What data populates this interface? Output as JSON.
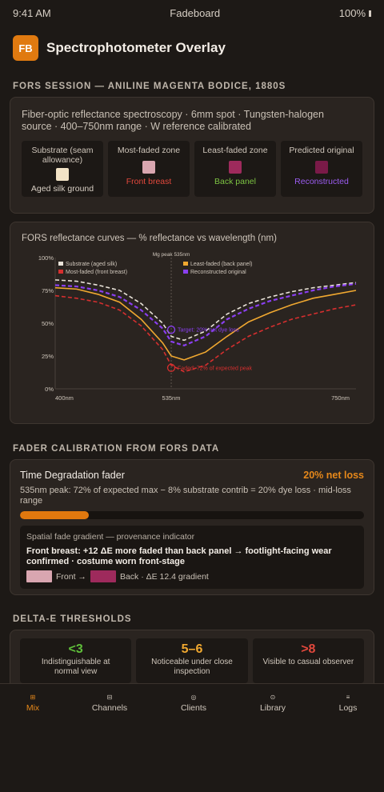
{
  "status": {
    "time": "9:41 AM",
    "app": "Fadeboard",
    "battery": "100%"
  },
  "header": {
    "logo": "FB",
    "title": "Spectrophotometer Overlay"
  },
  "fors": {
    "section_title": "FORS SESSION — ANILINE MAGENTA BODICE, 1880S",
    "desc_line1": "Fiber-optic reflectance spectroscopy · 6mm spot · Tungsten-halogen",
    "desc_line2": "source · 400–750nm range · W reference calibrated",
    "zones": [
      {
        "title1": "Substrate (seam",
        "title2": "allowance)",
        "label": "Aged silk ground",
        "swatch": "#f2e3c6",
        "label_color": "#d8cfc4"
      },
      {
        "title1": "Most-faded zone",
        "title2": "",
        "label": "Front breast",
        "swatch": "#d9a6b0",
        "label_color": "#e2483c"
      },
      {
        "title1": "Least-faded zone",
        "title2": "",
        "label": "Back panel",
        "swatch": "#9e2a5c",
        "label_color": "#7cc242"
      },
      {
        "title1": "Predicted original",
        "title2": "",
        "label": "Reconstructed",
        "swatch": "#7a1a48",
        "label_color": "#9b5cf0"
      }
    ]
  },
  "chart_data": {
    "type": "line",
    "title": "FORS reflectance curves — % reflectance vs wavelength (nm)",
    "x": [
      400,
      425,
      450,
      475,
      500,
      525,
      535,
      550,
      575,
      600,
      625,
      650,
      675,
      700,
      725,
      750
    ],
    "xticks": [
      "400nm",
      "535nm",
      "750nm"
    ],
    "yticks": [
      "100%",
      "75%",
      "50%",
      "25%",
      "0%"
    ],
    "ylim": [
      0,
      100
    ],
    "xlim": [
      400,
      750
    ],
    "peak_label": "Mg peak 535nm",
    "series": [
      {
        "name": "Substrate (aged silk)",
        "color": "#e8e2d8",
        "dashed": true,
        "values": [
          83,
          82,
          79,
          75,
          65,
          50,
          40,
          37,
          44,
          57,
          65,
          70,
          74,
          77,
          79,
          81
        ]
      },
      {
        "name": "Most-faded (front breast)",
        "color": "#d62f2f",
        "dashed": true,
        "values": [
          71,
          69,
          66,
          60,
          48,
          30,
          18,
          13,
          18,
          30,
          40,
          47,
          53,
          57,
          61,
          64
        ]
      },
      {
        "name": "Least-faded (back panel)",
        "color": "#f0a830",
        "dashed": false,
        "values": [
          77,
          76,
          72,
          66,
          53,
          35,
          25,
          22,
          28,
          40,
          51,
          58,
          64,
          69,
          72,
          75
        ]
      },
      {
        "name": "Reconstructed original",
        "color": "#8a3ff0",
        "dashed": true,
        "values": [
          79,
          78,
          75,
          70,
          60,
          46,
          36,
          33,
          40,
          53,
          61,
          67,
          71,
          75,
          78,
          80
        ]
      }
    ],
    "annotations": [
      {
        "text": "Target: 20% net dye loss",
        "x": 535,
        "y": 45,
        "color": "#8a3ff0"
      },
      {
        "text": "Faded: 72% of expected peak",
        "x": 535,
        "y": 16,
        "color": "#d62f2f"
      }
    ]
  },
  "fader": {
    "section_title": "FADER CALIBRATION FROM FORS DATA",
    "name": "Time Degradation fader",
    "value": "20% net loss",
    "desc": "535nm peak: 72% of expected max − 8% substrate contrib = 20% dye loss · mid-loss range",
    "progress": 0.2,
    "gradient_title": "Spatial fade gradient — provenance indicator",
    "gradient_body": "Front breast: +12 ΔE more faded than back panel → footlight-facing wear confirmed · costume worn front-stage",
    "front_label": "Front →",
    "back_label": "Back · ΔE 12.4 gradient",
    "front_color": "#d9a6b0",
    "back_color": "#9e2a5c"
  },
  "delta": {
    "section_title": "DELTA-E THRESHOLDS",
    "items": [
      {
        "value": "<3",
        "label1": "Indistinguishable at",
        "label2": "normal view",
        "color": "#5fbf3a"
      },
      {
        "value": "5–6",
        "label1": "Noticeable under close",
        "label2": "inspection",
        "color": "#f0a830"
      },
      {
        "value": ">8",
        "label1": "Visible to casual observer",
        "label2": "",
        "color": "#e2483c"
      }
    ]
  },
  "tabs": [
    {
      "label": "Mix",
      "icon": "mix-icon",
      "glyph": "⊞",
      "active": true
    },
    {
      "label": "Channels",
      "icon": "channels-icon",
      "glyph": "⊟",
      "active": false
    },
    {
      "label": "Clients",
      "icon": "clients-icon",
      "glyph": "◎",
      "active": false
    },
    {
      "label": "Library",
      "icon": "library-icon",
      "glyph": "⊙",
      "active": false
    },
    {
      "label": "Logs",
      "icon": "logs-icon",
      "glyph": "≡",
      "active": false
    }
  ]
}
